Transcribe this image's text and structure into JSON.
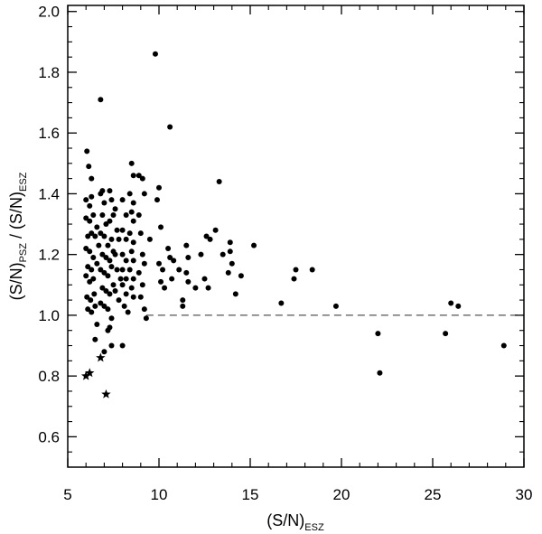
{
  "chart_data": {
    "type": "scatter",
    "xlabel": "(S/N)",
    "xlabel_sub": "ESZ",
    "ylabel_part1": "(S/N)",
    "ylabel_sub1": "PSZ",
    "ylabel_part2": " / (S/N)",
    "ylabel_sub2": "ESZ",
    "xlim": [
      5,
      30
    ],
    "ylim": [
      0.5,
      2.02
    ],
    "xticks": [
      5,
      10,
      15,
      20,
      25,
      30
    ],
    "yticks": [
      0.6,
      0.8,
      1.0,
      1.2,
      1.4,
      1.6,
      1.8,
      2.0
    ],
    "ytick_labels": [
      "0.6",
      "0.8",
      "1.0",
      "1.2",
      "1.4",
      "1.6",
      "1.8",
      "2.0"
    ],
    "reference_line": {
      "y": 1.0,
      "style": "dashed",
      "color": "#555555"
    },
    "marker_color": "#000000",
    "series": [
      {
        "marker": "circle",
        "points": [
          [
            6.05,
            1.54
          ],
          [
            6.15,
            1.49
          ],
          [
            6.3,
            1.45
          ],
          [
            6.0,
            1.38
          ],
          [
            6.2,
            1.36
          ],
          [
            6.3,
            1.39
          ],
          [
            6.0,
            1.32
          ],
          [
            6.2,
            1.31
          ],
          [
            6.4,
            1.33
          ],
          [
            6.1,
            1.26
          ],
          [
            6.3,
            1.27
          ],
          [
            6.5,
            1.26
          ],
          [
            6.0,
            1.22
          ],
          [
            6.2,
            1.21
          ],
          [
            6.4,
            1.19
          ],
          [
            6.1,
            1.16
          ],
          [
            6.3,
            1.15
          ],
          [
            6.0,
            1.13
          ],
          [
            6.2,
            1.11
          ],
          [
            6.4,
            1.12
          ],
          [
            6.05,
            1.06
          ],
          [
            6.25,
            1.05
          ],
          [
            6.45,
            1.07
          ],
          [
            6.1,
            1.02
          ],
          [
            6.3,
            1.01
          ],
          [
            6.5,
            1.03
          ],
          [
            6.6,
            0.97
          ],
          [
            6.5,
            0.92
          ],
          [
            6.6,
            1.29
          ],
          [
            6.7,
            1.23
          ],
          [
            6.6,
            1.17
          ],
          [
            6.8,
            1.71
          ],
          [
            6.8,
            1.4
          ],
          [
            6.9,
            1.41
          ],
          [
            7.0,
            1.37
          ],
          [
            7.3,
            1.41
          ],
          [
            7.4,
            1.38
          ],
          [
            6.9,
            1.33
          ],
          [
            7.1,
            1.3
          ],
          [
            7.3,
            1.31
          ],
          [
            7.5,
            1.33
          ],
          [
            6.8,
            1.27
          ],
          [
            7.0,
            1.26
          ],
          [
            7.2,
            1.23
          ],
          [
            7.4,
            1.25
          ],
          [
            6.9,
            1.2
          ],
          [
            7.1,
            1.19
          ],
          [
            7.3,
            1.18
          ],
          [
            7.5,
            1.21
          ],
          [
            6.8,
            1.15
          ],
          [
            7.0,
            1.14
          ],
          [
            7.2,
            1.13
          ],
          [
            7.4,
            1.16
          ],
          [
            6.9,
            1.09
          ],
          [
            7.1,
            1.08
          ],
          [
            7.3,
            1.07
          ],
          [
            7.5,
            1.1
          ],
          [
            6.8,
            1.04
          ],
          [
            7.0,
            1.03
          ],
          [
            7.2,
            1.02
          ],
          [
            7.4,
            0.99
          ],
          [
            7.2,
            0.95
          ],
          [
            7.4,
            0.9
          ],
          [
            7.0,
            0.88
          ],
          [
            7.3,
            0.96
          ],
          [
            7.6,
            1.35
          ],
          [
            7.7,
            1.28
          ],
          [
            7.8,
            1.25
          ],
          [
            7.6,
            1.2
          ],
          [
            7.7,
            1.15
          ],
          [
            7.9,
            1.12
          ],
          [
            7.6,
            1.08
          ],
          [
            7.8,
            1.05
          ],
          [
            8.0,
            0.9
          ],
          [
            8.0,
            1.38
          ],
          [
            8.2,
            1.33
          ],
          [
            8.0,
            1.28
          ],
          [
            8.2,
            1.25
          ],
          [
            8.0,
            1.2
          ],
          [
            8.2,
            1.18
          ],
          [
            8.0,
            1.15
          ],
          [
            8.2,
            1.12
          ],
          [
            8.0,
            1.1
          ],
          [
            8.2,
            1.07
          ],
          [
            8.1,
            1.03
          ],
          [
            8.3,
            1.01
          ],
          [
            8.5,
            1.5
          ],
          [
            8.6,
            1.46
          ],
          [
            8.4,
            1.4
          ],
          [
            8.6,
            1.37
          ],
          [
            8.5,
            1.34
          ],
          [
            8.6,
            1.31
          ],
          [
            8.4,
            1.27
          ],
          [
            8.6,
            1.24
          ],
          [
            8.5,
            1.21
          ],
          [
            8.6,
            1.18
          ],
          [
            8.4,
            1.15
          ],
          [
            8.6,
            1.12
          ],
          [
            8.5,
            1.09
          ],
          [
            8.6,
            1.06
          ],
          [
            8.9,
            1.46
          ],
          [
            9.1,
            1.45
          ],
          [
            9.2,
            1.4
          ],
          [
            8.9,
            1.33
          ],
          [
            9.0,
            1.27
          ],
          [
            9.1,
            1.2
          ],
          [
            9.2,
            1.17
          ],
          [
            8.9,
            1.14
          ],
          [
            9.1,
            1.1
          ],
          [
            9.0,
            1.06
          ],
          [
            9.2,
            1.02
          ],
          [
            9.3,
            0.99
          ],
          [
            9.5,
            1.25
          ],
          [
            9.8,
            1.86
          ],
          [
            10.0,
            1.42
          ],
          [
            9.9,
            1.38
          ],
          [
            10.1,
            1.29
          ],
          [
            10.0,
            1.17
          ],
          [
            10.2,
            1.15
          ],
          [
            10.1,
            1.11
          ],
          [
            10.3,
            1.09
          ],
          [
            10.6,
            1.62
          ],
          [
            10.6,
            1.19
          ],
          [
            10.8,
            1.18
          ],
          [
            10.5,
            1.22
          ],
          [
            10.7,
            1.12
          ],
          [
            11.1,
            1.15
          ],
          [
            11.3,
            1.05
          ],
          [
            11.3,
            1.03
          ],
          [
            11.5,
            1.23
          ],
          [
            11.6,
            1.19
          ],
          [
            11.5,
            1.14
          ],
          [
            11.6,
            1.11
          ],
          [
            12.0,
            1.09
          ],
          [
            12.3,
            1.2
          ],
          [
            12.5,
            1.12
          ],
          [
            12.6,
            1.26
          ],
          [
            12.8,
            1.25
          ],
          [
            12.7,
            1.09
          ],
          [
            13.1,
            1.28
          ],
          [
            13.3,
            1.44
          ],
          [
            13.5,
            1.2
          ],
          [
            13.8,
            1.14
          ],
          [
            13.9,
            1.24
          ],
          [
            13.9,
            1.21
          ],
          [
            14.0,
            1.17
          ],
          [
            14.2,
            1.07
          ],
          [
            14.5,
            1.13
          ],
          [
            15.2,
            1.23
          ],
          [
            16.7,
            1.04
          ],
          [
            17.4,
            1.12
          ],
          [
            17.5,
            1.15
          ],
          [
            18.4,
            1.15
          ],
          [
            19.7,
            1.03
          ],
          [
            22.0,
            0.94
          ],
          [
            22.1,
            0.81
          ],
          [
            25.7,
            0.94
          ],
          [
            26.0,
            1.04
          ],
          [
            26.4,
            1.03
          ],
          [
            28.9,
            0.9
          ]
        ]
      },
      {
        "marker": "star",
        "points": [
          [
            6.0,
            0.8
          ],
          [
            6.2,
            0.81
          ],
          [
            6.8,
            0.86
          ],
          [
            7.1,
            0.74
          ]
        ]
      }
    ]
  }
}
